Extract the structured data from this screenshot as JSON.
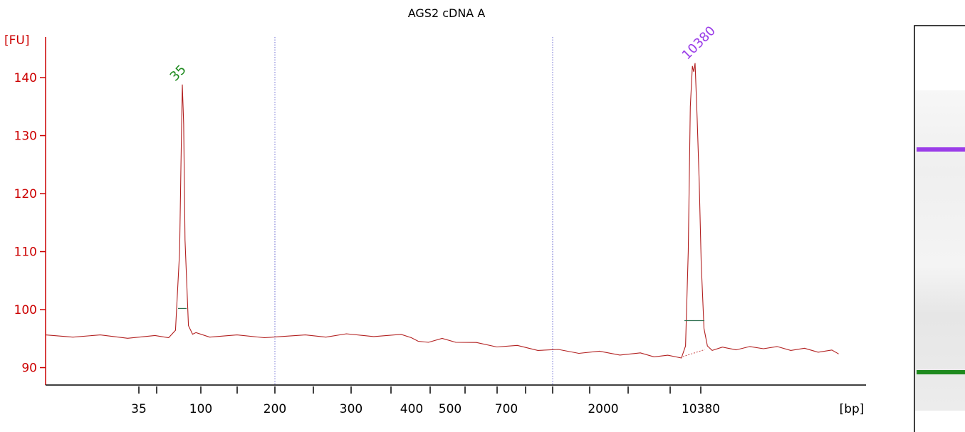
{
  "chart_data": {
    "type": "line",
    "title": "AGS2 cDNA A",
    "ylabel": "[FU]",
    "xlabel": "[bp]",
    "ylim": [
      87,
      147
    ],
    "yticks": [
      90,
      100,
      110,
      120,
      130,
      140
    ],
    "xtick_labels": [
      "35",
      "100",
      "200",
      "300",
      "400",
      "500",
      "700",
      "2000",
      "10380"
    ],
    "xtick_marks": [
      "35",
      "",
      "100",
      "",
      "200",
      "300",
      "400",
      "500",
      "",
      "700",
      "",
      "2000",
      "",
      "",
      "10380"
    ],
    "series": [
      {
        "values": [
          [
            0,
            95.4
          ],
          [
            4,
            95.5
          ],
          [
            8,
            95.4
          ],
          [
            12,
            95.3
          ],
          [
            16,
            95.3
          ],
          [
            18,
            95.4
          ],
          [
            19,
            96.2
          ],
          [
            19.6,
            110
          ],
          [
            19.8,
            125
          ],
          [
            20.0,
            138.8
          ],
          [
            20.2,
            132
          ],
          [
            20.4,
            112
          ],
          [
            20.9,
            97
          ],
          [
            21.5,
            96.0
          ],
          [
            22,
            95.8
          ],
          [
            24,
            95.5
          ],
          [
            28,
            95.4
          ],
          [
            32,
            95.4
          ],
          [
            38,
            95.4
          ],
          [
            41,
            95.5
          ],
          [
            44,
            95.6
          ],
          [
            48,
            95.6
          ],
          [
            52,
            95.5
          ],
          [
            53.5,
            95.4
          ],
          [
            54.5,
            94.3
          ],
          [
            56,
            94.6
          ],
          [
            58,
            94.8
          ],
          [
            60,
            94.6
          ],
          [
            63,
            94.1
          ],
          [
            66,
            93.8
          ],
          [
            69,
            93.6
          ],
          [
            72,
            93.2
          ],
          [
            75,
            92.9
          ],
          [
            78,
            92.7
          ],
          [
            81,
            92.6
          ],
          [
            84,
            92.4
          ],
          [
            87,
            92.3
          ],
          [
            89,
            92.1
          ],
          [
            91,
            91.9
          ],
          [
            93,
            91.9
          ],
          [
            93.6,
            93.5
          ],
          [
            94.0,
            110
          ],
          [
            94.3,
            135
          ],
          [
            94.6,
            142
          ],
          [
            94.8,
            141
          ],
          [
            95.0,
            142.5
          ],
          [
            95.3,
            133
          ],
          [
            95.6,
            122
          ],
          [
            95.9,
            108
          ],
          [
            96.3,
            97
          ],
          [
            96.8,
            93.5
          ],
          [
            97.5,
            93.2
          ],
          [
            99,
            93.3
          ],
          [
            101,
            93.3
          ],
          [
            103,
            93.4
          ],
          [
            105,
            93.5
          ],
          [
            107,
            93.4
          ],
          [
            109,
            93.2
          ],
          [
            111,
            93.1
          ],
          [
            113,
            92.9
          ],
          [
            115,
            92.8
          ],
          [
            116,
            92.6
          ]
        ]
      }
    ],
    "peaks": [
      {
        "label": "35",
        "x": 20.0,
        "y": 138.8,
        "color": "#1e8a1e"
      },
      {
        "label": "10380",
        "x": 94.9,
        "y": 142.5,
        "color": "#9a3ce8"
      }
    ],
    "markers": [
      {
        "x": 20.0,
        "y": 100.2
      },
      {
        "x": 94.9,
        "y": 98.1
      }
    ],
    "colors": {
      "axis": "#cc0000",
      "trace": "#b22020",
      "baseline": "#c84848",
      "divider": "#6a6ad0",
      "text": "#000000",
      "upper_marker": "#9a3ce8",
      "lower_marker": "#1e8a1e"
    },
    "gel_bands": [
      {
        "name": "upper-marker",
        "color": "#9a3ce8"
      },
      {
        "name": "lower-marker",
        "color": "#1e8a1e"
      }
    ]
  }
}
